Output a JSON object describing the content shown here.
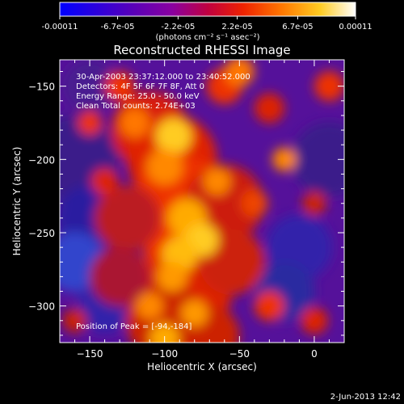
{
  "chart_data": {
    "type": "heatmap",
    "title": "Reconstructed RHESSI Image",
    "xlabel": "Heliocentric X (arcsec)",
    "ylabel": "Heliocentric Y (arcsec)",
    "xlim": [
      -170,
      20
    ],
    "ylim": [
      -325,
      -132
    ],
    "xticks": [
      -150,
      -100,
      -50,
      0
    ],
    "yticks": [
      -150,
      -200,
      -250,
      -300
    ],
    "colorbar": {
      "ticks": [
        "-0.00011",
        "-6.7e-05",
        "-2.2e-05",
        "2.2e-05",
        "6.7e-05",
        "0.00011"
      ],
      "tick_values": [
        -0.00011,
        -6.7e-05,
        -2.2e-05,
        2.2e-05,
        6.7e-05,
        0.00011
      ],
      "units": "(photons cm⁻² s⁻¹ asec⁻²)",
      "colormap": [
        "#0000ff",
        "#4400bb",
        "#7700aa",
        "#aa0066",
        "#ee2200",
        "#ff6600",
        "#ffbb00",
        "#ffff99",
        "#ffffff"
      ]
    },
    "annotations": [
      "30-Apr-2003 23:37:12.000 to 23:40:52.000",
      "Detectors: 4F 5F 6F 7F 8F, Att 0",
      "Energy Range: 25.0 - 50.0 keV",
      "Clean    Total counts: 2.74E+03",
      "Position of Peak = [-94,-184]"
    ],
    "peak": [
      -94,
      -184
    ]
  },
  "footer": {
    "date": "2-Jun-2013 12:42"
  }
}
